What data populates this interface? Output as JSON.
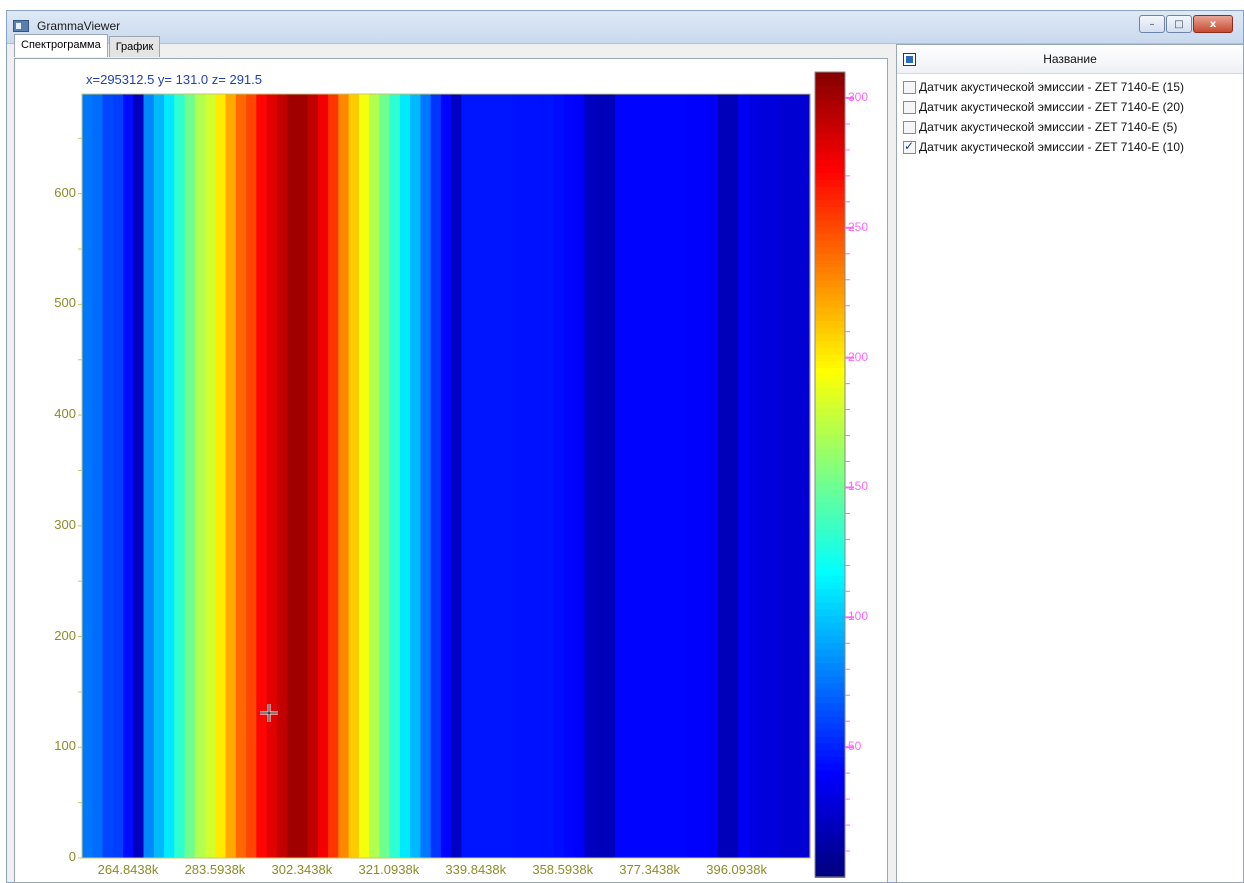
{
  "window": {
    "title": "GrammaViewer"
  },
  "window_buttons": {
    "minimize": "–",
    "maximize": "□",
    "close": "x"
  },
  "tabs": [
    {
      "label": "Спектрограмма",
      "active": true
    },
    {
      "label": "График",
      "active": false
    }
  ],
  "readout": "x=295312.5 y=  131.0 z=  291.5",
  "list": {
    "header": "Название",
    "items": [
      {
        "label": "Датчик акустической эмиссии - ZET 7140-E (15)",
        "checked": false
      },
      {
        "label": "Датчик акустической эмиссии - ZET 7140-E (20)",
        "checked": false
      },
      {
        "label": "Датчик акустической эмиссии - ZET 7140-E (5)",
        "checked": false
      },
      {
        "label": "Датчик акустической эмиссии - ZET 7140-E (10)",
        "checked": true
      }
    ]
  },
  "chart_data": {
    "type": "heatmap",
    "y_ticks": [
      "0",
      "100",
      "200",
      "300",
      "400",
      "500",
      "600"
    ],
    "x_ticks": [
      "264.8438k",
      "283.5938k",
      "302.3438k",
      "321.0938k",
      "339.8438k",
      "358.5938k",
      "377.3438k",
      "396.0938k"
    ],
    "xlim": [
      255000,
      412000
    ],
    "ylim": [
      0,
      690
    ],
    "colorbar_labels": [
      "50",
      "100",
      "150",
      "200",
      "250",
      "300"
    ],
    "colorbar_range": [
      0,
      310
    ],
    "column_values": [
      75,
      72,
      60,
      58,
      42,
      20,
      80,
      95,
      110,
      130,
      150,
      170,
      180,
      200,
      220,
      240,
      250,
      270,
      280,
      290,
      300,
      300,
      290,
      275,
      255,
      230,
      210,
      190,
      170,
      150,
      130,
      110,
      95,
      75,
      55,
      40,
      20,
      45,
      45,
      45,
      45,
      45,
      44,
      44,
      44,
      44,
      42,
      40,
      38,
      20,
      18,
      18,
      40,
      40,
      40,
      40,
      40,
      40,
      40,
      38,
      38,
      36,
      18,
      18,
      35,
      30,
      28,
      28,
      25,
      25,
      25
    ],
    "cursor": {
      "x": 295312.5,
      "y": 131.0
    }
  },
  "colors": {
    "tick_text": "#8c8c2a",
    "colorbar_text": "#ff66ff",
    "readout_text": "#1f3fb5",
    "axis_line": "#c8c860"
  }
}
